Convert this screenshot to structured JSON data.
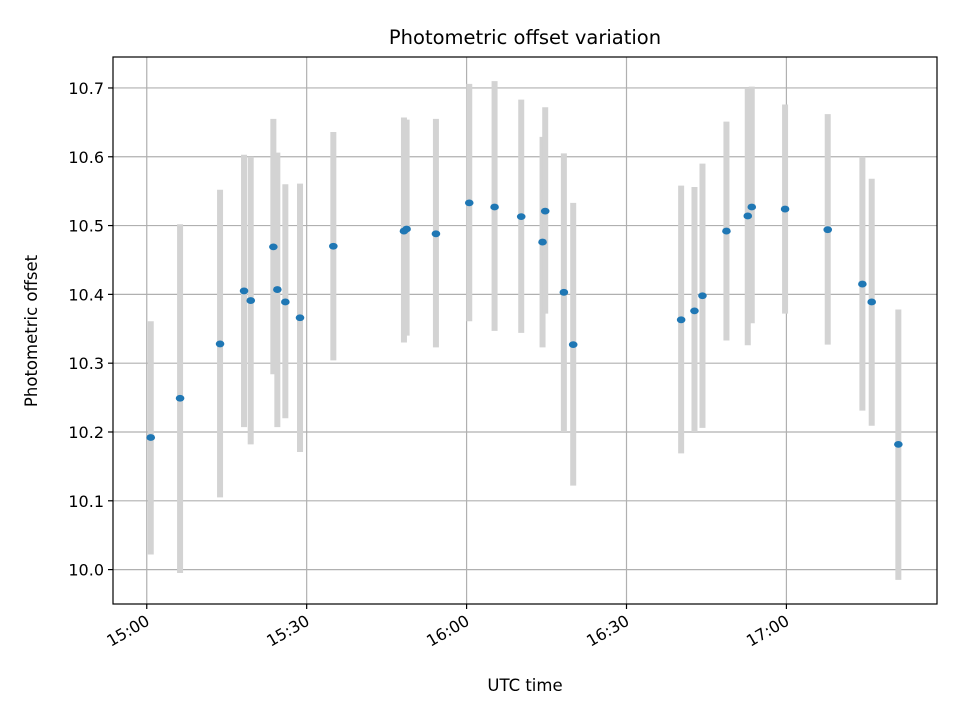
{
  "chart_data": {
    "type": "scatter",
    "title": "Photometric offset variation",
    "xlabel": "UTC time",
    "ylabel": "Photometric offset",
    "x_axis_type": "time",
    "xlim": [
      "14:53:40",
      "17:28:15"
    ],
    "ylim": [
      9.95,
      10.745
    ],
    "x_ticks": [
      "15:00",
      "15:30",
      "16:00",
      "16:30",
      "17:00"
    ],
    "y_ticks": [
      10.0,
      10.1,
      10.2,
      10.3,
      10.4,
      10.5,
      10.6,
      10.7
    ],
    "grid": true,
    "colors": {
      "points": "#1f77b4",
      "error_bars": "#d3d3d3",
      "grid": "#b0b0b0"
    },
    "points": [
      {
        "time": "15:00:45",
        "y": 10.192,
        "y_low": 10.022,
        "y_high": 10.361
      },
      {
        "time": "15:06:15",
        "y": 10.249,
        "y_low": 9.995,
        "y_high": 10.502
      },
      {
        "time": "15:13:45",
        "y": 10.328,
        "y_low": 10.105,
        "y_high": 10.552
      },
      {
        "time": "15:18:15",
        "y": 10.405,
        "y_low": 10.207,
        "y_high": 10.603
      },
      {
        "time": "15:19:30",
        "y": 10.391,
        "y_low": 10.182,
        "y_high": 10.6
      },
      {
        "time": "15:23:45",
        "y": 10.469,
        "y_low": 10.284,
        "y_high": 10.655
      },
      {
        "time": "15:24:30",
        "y": 10.407,
        "y_low": 10.207,
        "y_high": 10.606
      },
      {
        "time": "15:26:00",
        "y": 10.389,
        "y_low": 10.22,
        "y_high": 10.56
      },
      {
        "time": "15:28:45",
        "y": 10.366,
        "y_low": 10.171,
        "y_high": 10.561
      },
      {
        "time": "15:35:00",
        "y": 10.47,
        "y_low": 10.304,
        "y_high": 10.636
      },
      {
        "time": "15:48:15",
        "y": 10.492,
        "y_low": 10.33,
        "y_high": 10.657
      },
      {
        "time": "15:48:45",
        "y": 10.495,
        "y_low": 10.34,
        "y_high": 10.654
      },
      {
        "time": "15:54:15",
        "y": 10.488,
        "y_low": 10.323,
        "y_high": 10.655
      },
      {
        "time": "16:00:30",
        "y": 10.533,
        "y_low": 10.361,
        "y_high": 10.706
      },
      {
        "time": "16:05:15",
        "y": 10.527,
        "y_low": 10.347,
        "y_high": 10.71
      },
      {
        "time": "16:10:15",
        "y": 10.513,
        "y_low": 10.344,
        "y_high": 10.683
      },
      {
        "time": "16:14:15",
        "y": 10.476,
        "y_low": 10.323,
        "y_high": 10.629
      },
      {
        "time": "16:14:45",
        "y": 10.521,
        "y_low": 10.372,
        "y_high": 10.672
      },
      {
        "time": "16:18:15",
        "y": 10.403,
        "y_low": 10.2,
        "y_high": 10.605
      },
      {
        "time": "16:20:00",
        "y": 10.327,
        "y_low": 10.122,
        "y_high": 10.533
      },
      {
        "time": "16:40:15",
        "y": 10.363,
        "y_low": 10.169,
        "y_high": 10.558
      },
      {
        "time": "16:42:45",
        "y": 10.376,
        "y_low": 10.2,
        "y_high": 10.556
      },
      {
        "time": "16:44:15",
        "y": 10.398,
        "y_low": 10.206,
        "y_high": 10.59
      },
      {
        "time": "16:48:45",
        "y": 10.492,
        "y_low": 10.333,
        "y_high": 10.651
      },
      {
        "time": "16:52:45",
        "y": 10.514,
        "y_low": 10.326,
        "y_high": 10.7
      },
      {
        "time": "16:53:30",
        "y": 10.527,
        "y_low": 10.358,
        "y_high": 10.702
      },
      {
        "time": "16:59:45",
        "y": 10.524,
        "y_low": 10.372,
        "y_high": 10.676
      },
      {
        "time": "17:07:45",
        "y": 10.494,
        "y_low": 10.327,
        "y_high": 10.662
      },
      {
        "time": "17:14:15",
        "y": 10.415,
        "y_low": 10.231,
        "y_high": 10.6
      },
      {
        "time": "17:16:00",
        "y": 10.389,
        "y_low": 10.209,
        "y_high": 10.568
      },
      {
        "time": "17:21:00",
        "y": 10.182,
        "y_low": 9.985,
        "y_high": 10.378
      }
    ]
  }
}
